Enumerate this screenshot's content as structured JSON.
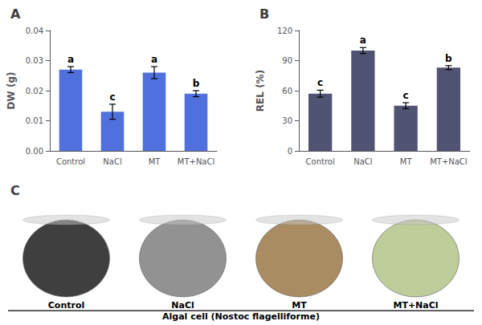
{
  "chart_data": [
    {
      "type": "bar",
      "title": "A",
      "categories": [
        "Control",
        "NaCl",
        "MT",
        "MT+NaCl"
      ],
      "values": [
        0.027,
        0.013,
        0.026,
        0.019
      ],
      "errors": [
        0.001,
        0.0025,
        0.002,
        0.001
      ],
      "annotations": [
        "a",
        "c",
        "a",
        "b"
      ],
      "ylabel": "DW (g)",
      "ylim": [
        0.0,
        0.04
      ],
      "yticks": [
        {
          "value": 0,
          "label": "0.00"
        },
        0.01,
        0.02,
        0.03,
        0.04
      ],
      "grid": false
    },
    {
      "type": "bar",
      "title": "B",
      "categories": [
        "Control",
        "NaCl",
        "MT",
        "MT+NaCl"
      ],
      "values": [
        57,
        100,
        45,
        83
      ],
      "errors": [
        3.5,
        3,
        3,
        2
      ],
      "annotations": [
        "c",
        "a",
        "c",
        "b"
      ],
      "ylabel": "REL (%)",
      "ylim": [
        0,
        120
      ],
      "yticks": [
        0,
        30,
        60,
        90,
        120
      ],
      "grid": false
    },
    {
      "type": "illustration",
      "title": "C",
      "categories": [
        "Control",
        "NaCl",
        "MT",
        "MT+NaCl"
      ],
      "colors": [
        "#2a2a2a",
        "#868686",
        "#a08050",
        "#b8c890"
      ],
      "caption": "Algal cell (Nostoc flagelliforme)"
    }
  ]
}
